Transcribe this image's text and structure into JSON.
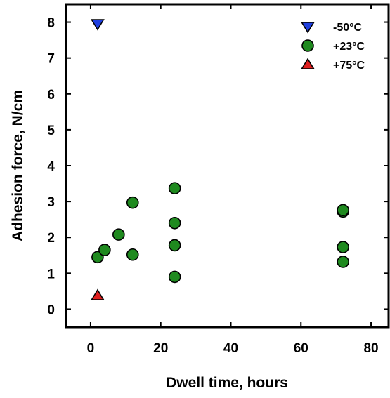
{
  "chart_data": {
    "type": "scatter",
    "title": "",
    "xlabel": "Dwell time, hours",
    "ylabel": "Adhesion force, N/cm",
    "xlim": [
      -7,
      85
    ],
    "ylim": [
      -0.5,
      8.5
    ],
    "xticks": [
      0,
      20,
      40,
      60,
      80
    ],
    "yticks": [
      0,
      1,
      2,
      3,
      4,
      5,
      6,
      7,
      8
    ],
    "grid": false,
    "legend_position": "top-right",
    "series": [
      {
        "name": "-50°C",
        "marker": "triangle-down",
        "color": "#1f3fe0",
        "points": [
          {
            "x": 2,
            "y": 7.95
          }
        ]
      },
      {
        "name": "+23°C",
        "marker": "circle",
        "color": "#1f8a1f",
        "points": [
          {
            "x": 2,
            "y": 1.45
          },
          {
            "x": 4,
            "y": 1.65
          },
          {
            "x": 8,
            "y": 2.08
          },
          {
            "x": 12,
            "y": 2.97
          },
          {
            "x": 12,
            "y": 1.52
          },
          {
            "x": 24,
            "y": 3.37
          },
          {
            "x": 24,
            "y": 2.4
          },
          {
            "x": 24,
            "y": 1.78
          },
          {
            "x": 24,
            "y": 0.9
          },
          {
            "x": 72,
            "y": 2.72
          },
          {
            "x": 72,
            "y": 2.76
          },
          {
            "x": 72,
            "y": 1.73
          },
          {
            "x": 72,
            "y": 1.32
          }
        ]
      },
      {
        "name": "+75°C",
        "marker": "triangle-up",
        "color": "#e01f1f",
        "points": [
          {
            "x": 2,
            "y": 0.38
          }
        ]
      }
    ]
  }
}
